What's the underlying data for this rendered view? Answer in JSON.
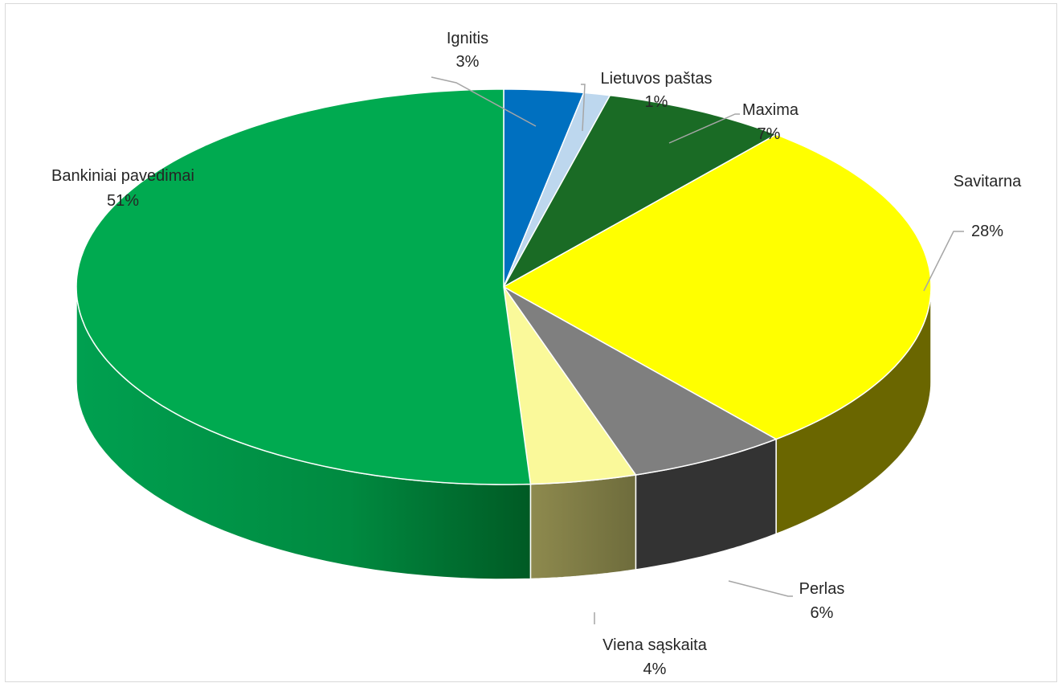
{
  "chart_data": {
    "type": "pie",
    "title": "",
    "legend": "none",
    "slices": [
      {
        "label": "Ignitis",
        "value_text": "3%",
        "value": 3,
        "color": "#0070C0"
      },
      {
        "label": "Lietuvos paštas",
        "value_text": "1%",
        "value": 1,
        "color": "#BDD7EE"
      },
      {
        "label": "Maxima",
        "value_text": "7%",
        "value": 7,
        "color": "#1A6B25"
      },
      {
        "label": "Savitarna",
        "value_text": "28%",
        "value": 28,
        "color": "#FFFF00"
      },
      {
        "label": "Perlas",
        "value_text": "6%",
        "value": 6,
        "color": "#7F7F7F"
      },
      {
        "label": "Viena sąskaita",
        "value_text": "4%",
        "value": 4,
        "color": "#FAF99A"
      },
      {
        "label": "Bankiniai pavedimai",
        "value_text": "51%",
        "value": 51,
        "color": "#00AA50"
      }
    ]
  }
}
